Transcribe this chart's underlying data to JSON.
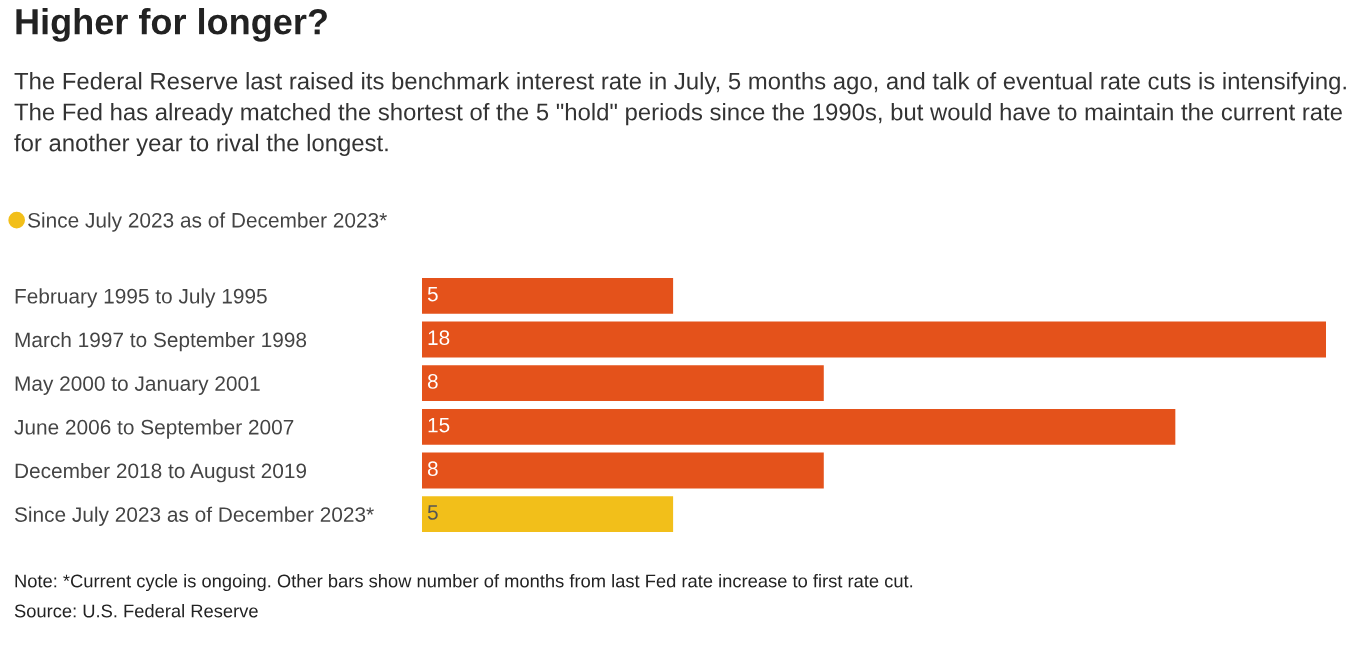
{
  "chart_data": {
    "type": "bar",
    "orientation": "horizontal",
    "title": "Higher for longer?",
    "subtitle": "The Federal Reserve last raised its benchmark interest rate in July, 5 months ago, and talk of eventual rate cuts is intensifying. The Fed has already matched the shortest of the 5 \"hold\" periods since the 1990s, but would have to maintain the current rate for another year to rival the longest.",
    "categories": [
      "February 1995 to July 1995",
      "March 1997 to September 1998",
      "May 2000 to January 2001",
      "June 2006 to September 2007",
      "December 2018 to August 2019",
      "Since July 2023 as of December 2023*"
    ],
    "series": [
      {
        "color": "#e4521b",
        "values": [
          5,
          18,
          8,
          15,
          8,
          null
        ]
      },
      {
        "name": "Since July 2023 as of December 2023*",
        "color": "#f2bf1a",
        "values": [
          null,
          null,
          null,
          null,
          null,
          5
        ]
      }
    ],
    "data_labels": true,
    "legend": "top left",
    "tick_labels": "y",
    "annotations": [
      "Note: *Current cycle is ongoing. Other bars show number of months from last Fed rate increase to first rate cut.",
      "Source: U.S. Federal Reserve"
    ]
  }
}
